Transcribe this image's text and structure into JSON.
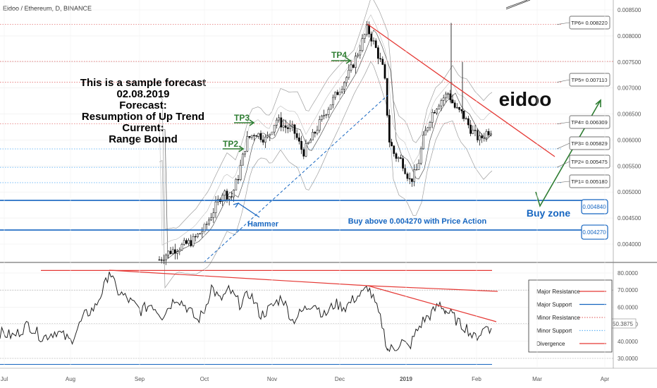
{
  "header": {
    "title": "Eidoo / Ethereum, D, BINANCE"
  },
  "forecast": {
    "lines": [
      "This is a sample forecast",
      "02.08.2019",
      "Forecast:",
      "Resumption of Up Trend",
      "Current:",
      "Range Bound"
    ]
  },
  "brand": {
    "name": "eidoo"
  },
  "annotations": {
    "hammer": "Hammer",
    "buy_text": "Buy above 0.004270 with Price Action",
    "buy_zone": "Buy zone",
    "tp2": "TP2",
    "tp3": "TP3",
    "tp4": "TP4"
  },
  "colors": {
    "candle": "#000000",
    "major_resistance": "#e53935",
    "major_support": "#1565c0",
    "minor_resistance": "#e57373",
    "minor_support": "#64b5f6",
    "trend_green": "#2e7d32",
    "band": "#9e9e9e"
  },
  "chart_data": [
    {
      "type": "candlestick",
      "title": "Eidoo / Ethereum, D, BINANCE",
      "x_ticks": [
        "Jul",
        "Aug",
        "Sep",
        "Oct",
        "Nov",
        "Dec",
        "2019",
        "Feb",
        "Mar",
        "Apr"
      ],
      "y_ticks": [
        "0.008500",
        "0.008000",
        "0.007500",
        "0.007000",
        "0.006500",
        "0.006000",
        "0.005500",
        "0.005000",
        "0.004500",
        "0.004000"
      ],
      "ylim": [
        0.00366,
        0.00862
      ],
      "levels": [
        {
          "label": "TP6= 0.008220",
          "value": 0.00822,
          "style": "minor_resistance"
        },
        {
          "label": "TP5= 0.007110",
          "value": 0.00711,
          "style": "minor_resistance"
        },
        {
          "label": "TP4= 0.006309",
          "value": 0.006309,
          "style": "minor_resistance"
        },
        {
          "label": "TP3= 0.005829",
          "value": 0.005829,
          "style": "minor_support"
        },
        {
          "label": "TP2= 0.005475",
          "value": 0.005475,
          "style": "minor_support"
        },
        {
          "label": "TP1= 0.005180",
          "value": 0.00518,
          "style": "minor_support"
        }
      ],
      "zone": {
        "upper": "0.004840",
        "lower": "0.004270",
        "upper_value": 0.00484,
        "lower_value": 0.00427
      },
      "extra_minor_resistance": 0.00751
    },
    {
      "type": "line",
      "y_ticks": [
        "80.0000",
        "70.0000",
        "60.0000",
        "50.0000",
        "40.0000",
        "30.0000"
      ],
      "last_value": "50.3875",
      "ylim": [
        24.8,
        87.9
      ],
      "major_resistance": 81.5,
      "major_support": 26.5,
      "minor_resistance": 70.0,
      "minor_support": 30.0,
      "legend": [
        "Major Resistance",
        "Major Support",
        "Minor Resistance",
        "Minor Support",
        "Divergence"
      ],
      "legend_styles": [
        "major_resistance",
        "major_support",
        "minor_resistance",
        "minor_support",
        "major_resistance"
      ]
    }
  ]
}
